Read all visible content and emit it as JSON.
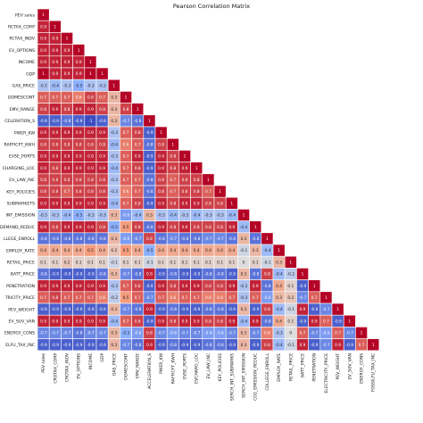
{
  "chart_data": {
    "type": "heatmap",
    "title": "Pearson Correlation Matrix",
    "shape": "lower-triangle",
    "colormap": "coolwarm",
    "vmin": -1,
    "vmax": 1,
    "variables": [
      "PEV sales",
      "RCTAX_CORP",
      "RCTAX_INDV",
      "EV_OPTIONS",
      "INCOME",
      "GDP",
      "GAS_PRICE",
      "DOMESCONT",
      "EMV_RANGE",
      "CELERATION_S",
      "PWER_KW",
      "RAFFICFT_KWH",
      "EVSE_PORTS",
      "CHARGING_LOC",
      "EV_LAW_INC",
      "KEY_POLICIES",
      "SUBMARKETS",
      "INT_EMISSION",
      "DEMAND_REDUC",
      "LLEGE_ENROLL",
      "EMPLOY_RATE",
      "RETAIL_PRICE",
      "BATT_PRICE",
      "PENETRATION",
      "TRICITY_PRICE",
      "PEV_WEIGHT",
      "EV_SUV_VAN",
      "ENERGY_CONS",
      "ELFU_TAX_INC"
    ],
    "x_labels": [
      "PEV sales",
      "CROTAX_CORP",
      "CROTAX_INDV",
      "EV_OPTIONS",
      "INCOME",
      "GDP",
      "GAS_PRICE",
      "DOMESCONT",
      "EMV_RANGE",
      "ACCELERATION_S",
      "PWER_KW",
      "RAFFICFT_KWH",
      "EVSE_PORTS",
      "EVCHARG_LOC",
      "EV_LAW_INC",
      "KEY_POLICIES",
      "SERCH_INT_SUBMARKS",
      "SERCH_INT_EMISSION",
      "CO2_EMISSION_REDUC",
      "COLLEGE_ENROLL",
      "EMPLOY_RATE",
      "RETAIL_PRICE",
      "BATT_PRICE",
      "PENETRATION",
      "ELECTRICITY_PRICE",
      "PEV_WEIGHT",
      "EV_SUV_VAN",
      "ENERGY_CONS",
      "FOSSILFU_TAX_INC"
    ],
    "values": [
      [
        1
      ],
      [
        0.9,
        1
      ],
      [
        0.9,
        0.9,
        1
      ],
      [
        0.9,
        0.9,
        0.9,
        1
      ],
      [
        0.9,
        0.9,
        0.9,
        0.9,
        1
      ],
      [
        1,
        0.9,
        0.9,
        0.9,
        1,
        1
      ],
      [
        -0.3,
        -0.4,
        -0.3,
        -0.5,
        -0.3,
        -0.3,
        1
      ],
      [
        0.7,
        0.7,
        0.7,
        0.6,
        0.8,
        0.7,
        0.3,
        1
      ],
      [
        0.8,
        0.9,
        0.8,
        0.9,
        0.9,
        0.8,
        0.3,
        0.8,
        1
      ],
      [
        -0.9,
        -0.9,
        -0.8,
        -0.9,
        -1,
        -0.9,
        0.3,
        -0.7,
        -0.8,
        1
      ],
      [
        0.9,
        0.9,
        0.9,
        0.9,
        0.9,
        0.9,
        -0.3,
        0.7,
        0.8,
        -0.9,
        1
      ],
      [
        0.8,
        0.8,
        0.8,
        0.8,
        0.8,
        0.8,
        -0.4,
        0.6,
        0.7,
        -0.8,
        0.8,
        1
      ],
      [
        0.9,
        0.9,
        0.9,
        0.9,
        0.9,
        0.9,
        -0.3,
        0.7,
        0.9,
        -0.9,
        0.9,
        0.8,
        1
      ],
      [
        0.9,
        0.8,
        0.9,
        0.9,
        0.9,
        0.9,
        -0.4,
        0.7,
        0.8,
        -0.9,
        0.9,
        0.8,
        0.9,
        1
      ],
      [
        0.8,
        0.8,
        0.8,
        0.8,
        0.8,
        0.8,
        -0.3,
        0.7,
        0.7,
        -0.8,
        0.8,
        0.7,
        0.8,
        0.8,
        1
      ],
      [
        0.8,
        0.8,
        0.7,
        0.8,
        0.8,
        0.8,
        -0.3,
        0.6,
        0.7,
        -0.8,
        0.8,
        0.7,
        0.8,
        0.8,
        0.7,
        1
      ],
      [
        0.9,
        0.9,
        0.9,
        0.9,
        0.9,
        0.9,
        -0.4,
        0.7,
        0.8,
        -0.9,
        0.9,
        0.8,
        0.9,
        0.9,
        0.8,
        0.8,
        1
      ],
      [
        -0.3,
        -0.3,
        -0.4,
        -0.5,
        -0.3,
        -0.3,
        0.3,
        -0.6,
        -0.4,
        0.3,
        -0.3,
        -0.4,
        -0.3,
        -0.4,
        -0.3,
        -0.3,
        -0.4,
        1
      ],
      [
        0.9,
        0.8,
        0.9,
        0.9,
        0.9,
        0.8,
        -0.5,
        0.5,
        0.8,
        -0.8,
        0.9,
        0.8,
        0.9,
        0.8,
        0.8,
        0.8,
        0.9,
        -0.4,
        1
      ],
      [
        -0.8,
        -0.8,
        -0.8,
        -0.8,
        -0.8,
        -0.8,
        0.3,
        -0.6,
        -0.7,
        0.8,
        -0.8,
        -0.7,
        -0.8,
        -0.8,
        -0.7,
        -0.7,
        -0.8,
        0.3,
        -0.8,
        1
      ],
      [
        0.4,
        0.4,
        0.4,
        0.4,
        0.5,
        0.4,
        0.2,
        0.5,
        0.4,
        -0.5,
        0.4,
        0.4,
        0.4,
        0.4,
        0.4,
        0.4,
        0.4,
        -0.1,
        0.3,
        -0.4,
        1
      ],
      [
        0.1,
        0.1,
        0.2,
        0.1,
        0.1,
        0.1,
        -0.1,
        0.1,
        0.1,
        -0.1,
        0.1,
        0.1,
        0.1,
        0.1,
        0.1,
        0.1,
        0.1,
        0,
        0.1,
        -0.1,
        0.3,
        1
      ],
      [
        -0.8,
        -0.9,
        -0.9,
        -0.9,
        -0.9,
        -0.8,
        0.3,
        -0.7,
        -0.8,
        0.9,
        -0.9,
        -0.8,
        -0.9,
        -0.9,
        -0.8,
        -0.8,
        -0.9,
        0.3,
        -0.8,
        0.8,
        -0.4,
        -0.2,
        1
      ],
      [
        0.9,
        0.9,
        0.9,
        0.9,
        0.9,
        0.9,
        -0.3,
        0.7,
        0.8,
        -0.9,
        0.9,
        0.8,
        0.9,
        0.9,
        0.8,
        0.8,
        0.9,
        -0.3,
        0.9,
        -0.8,
        0.4,
        0.1,
        -0.9,
        1
      ],
      [
        0.7,
        0.8,
        0.7,
        0.7,
        0.7,
        0.6,
        -0.2,
        0.5,
        0.7,
        -0.7,
        0.7,
        0.6,
        0.7,
        0.7,
        0.6,
        0.6,
        0.7,
        -0.3,
        0.7,
        -0.6,
        0.3,
        0.2,
        -0.7,
        0.7,
        1
      ],
      [
        -0.9,
        -0.9,
        -0.9,
        -0.9,
        -0.9,
        -0.9,
        0.3,
        -0.7,
        -0.8,
        0.9,
        -0.9,
        -0.8,
        -0.9,
        -0.9,
        -0.8,
        -0.8,
        -0.9,
        0.3,
        -0.9,
        0.8,
        -0.4,
        -0.1,
        0.9,
        -0.9,
        -0.7,
        1
      ],
      [
        0.9,
        0.9,
        0.9,
        0.9,
        0.9,
        0.9,
        -0.4,
        0.7,
        0.8,
        -0.9,
        0.9,
        0.8,
        0.9,
        0.9,
        0.8,
        0.8,
        0.9,
        -0.4,
        0.9,
        -0.8,
        0.4,
        0.1,
        -0.9,
        0.9,
        0.7,
        -0.9,
        1
      ],
      [
        -0.7,
        -0.7,
        -0.7,
        -0.8,
        -0.7,
        -0.7,
        0.3,
        -0.5,
        -0.6,
        0.8,
        -0.7,
        -0.6,
        -0.7,
        -0.7,
        -0.6,
        -0.6,
        -0.7,
        0.3,
        -0.7,
        0.6,
        -0.3,
        0,
        0.7,
        -0.7,
        -0.6,
        0.7,
        -0.7,
        1
      ],
      [
        -0.9,
        -0.9,
        -0.9,
        -0.9,
        -0.9,
        -0.9,
        0.3,
        -0.7,
        -0.8,
        0.9,
        -0.9,
        -0.8,
        -0.9,
        -0.9,
        -0.8,
        -0.8,
        -0.9,
        0.3,
        -0.9,
        0.8,
        -0.4,
        -0.1,
        0.9,
        -0.9,
        -0.7,
        0.9,
        -0.9,
        0.7,
        1
      ]
    ],
    "grid": false,
    "legend": "none"
  }
}
